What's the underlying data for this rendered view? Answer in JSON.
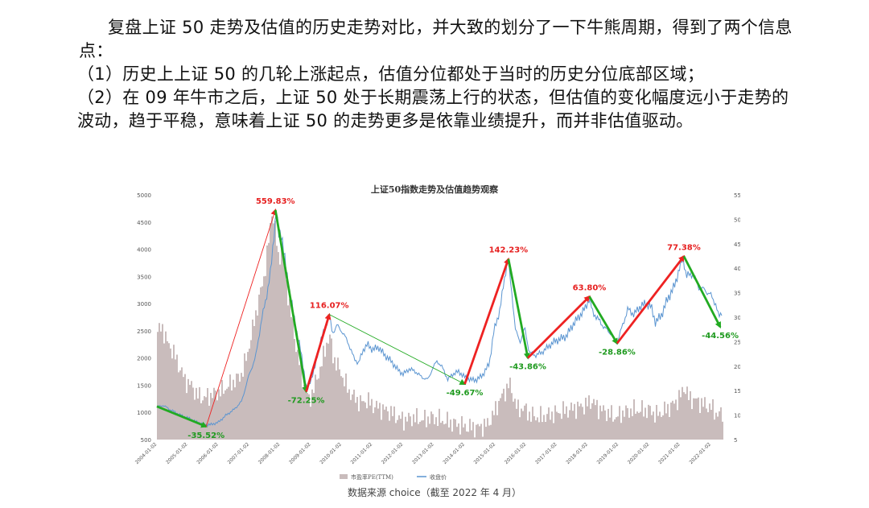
{
  "text": {
    "intro": "复盘上证 50 走势及估值的历史走势对比，并大致的划分了一下牛熊周期，得到了两个信息点：",
    "point1": "（1）历史上上证 50 的几轮上涨起点，估值分位都处于当时的历史分位底部区域；",
    "point2": "（2）在 09 年牛市之后，上证 50 处于长期震荡上行的状态，但估值的变化幅度远小于走势的波动，趋于平稳，意味着上证 50 的走势更多是依靠业绩提升，而并非估值驱动。",
    "source": "数据来源 choice（截至 2022 年 4 月）"
  },
  "chart_data": {
    "type": "area",
    "title": "上证50指数走势及估值趋势观察",
    "left_axis": {
      "ticks": [
        500,
        1000,
        1500,
        2000,
        2500,
        3000,
        3500,
        4000,
        4500,
        5000
      ],
      "ylim": [
        500,
        5000
      ]
    },
    "right_axis": {
      "ticks": [
        5,
        10,
        15,
        20,
        25,
        30,
        35,
        40,
        45,
        50,
        55
      ],
      "ylim": [
        5,
        55
      ]
    },
    "x_ticks": [
      "2004-01-02",
      "2005-01-02",
      "2006-01-02",
      "2007-01-02",
      "2008-01-02",
      "2009-01-02",
      "2010-01-02",
      "2011-01-02",
      "2012-01-02",
      "2013-01-02",
      "2014-01-02",
      "2015-01-02",
      "2016-01-02",
      "2017-01-02",
      "2018-01-02",
      "2019-01-02",
      "2020-01-02",
      "2021-01-02",
      "2022-01-02"
    ],
    "xlim": [
      2004.0,
      2022.35
    ],
    "legend": [
      "市盈率PE(TTM)",
      "收盘价"
    ],
    "legend_position": "bottom",
    "colors": {
      "pe": "#c9bcbc",
      "close": "#5b95d1",
      "up": "#ee2222",
      "down": "#22aa22",
      "label_up": "#e62020",
      "label_down": "#1f9a1f",
      "line": "#1a9a1a",
      "thin_up": "#e83030"
    },
    "series": [
      {
        "name": "收盘价",
        "axis": "left",
        "points": [
          [
            2004.0,
            1100
          ],
          [
            2004.2,
            1130
          ],
          [
            2004.4,
            1060
          ],
          [
            2004.6,
            1000
          ],
          [
            2004.8,
            940
          ],
          [
            2005.0,
            900
          ],
          [
            2005.3,
            820
          ],
          [
            2005.55,
            770
          ],
          [
            2005.8,
            780
          ],
          [
            2006.0,
            820
          ],
          [
            2006.25,
            950
          ],
          [
            2006.5,
            1050
          ],
          [
            2006.75,
            1200
          ],
          [
            2007.0,
            1700
          ],
          [
            2007.2,
            2000
          ],
          [
            2007.4,
            2700
          ],
          [
            2007.55,
            3100
          ],
          [
            2007.7,
            3600
          ],
          [
            2007.8,
            4250
          ],
          [
            2007.88,
            4750
          ],
          [
            2007.95,
            4250
          ],
          [
            2008.05,
            4300
          ],
          [
            2008.2,
            3600
          ],
          [
            2008.35,
            3100
          ],
          [
            2008.5,
            2600
          ],
          [
            2008.65,
            2200
          ],
          [
            2008.78,
            1750
          ],
          [
            2008.88,
            1390
          ],
          [
            2009.0,
            1600
          ],
          [
            2009.15,
            1850
          ],
          [
            2009.3,
            2300
          ],
          [
            2009.5,
            2600
          ],
          [
            2009.6,
            2800
          ],
          [
            2009.7,
            2450
          ],
          [
            2009.85,
            2600
          ],
          [
            2010.0,
            2500
          ],
          [
            2010.2,
            2300
          ],
          [
            2010.4,
            2000
          ],
          [
            2010.55,
            1900
          ],
          [
            2010.7,
            2150
          ],
          [
            2010.85,
            2250
          ],
          [
            2011.0,
            2150
          ],
          [
            2011.2,
            2200
          ],
          [
            2011.4,
            2050
          ],
          [
            2011.6,
            1950
          ],
          [
            2011.8,
            1800
          ],
          [
            2012.0,
            1700
          ],
          [
            2012.2,
            1800
          ],
          [
            2012.4,
            1750
          ],
          [
            2012.6,
            1650
          ],
          [
            2012.8,
            1600
          ],
          [
            2012.95,
            1800
          ],
          [
            2013.1,
            1950
          ],
          [
            2013.3,
            1800
          ],
          [
            2013.45,
            1600
          ],
          [
            2013.6,
            1700
          ],
          [
            2013.8,
            1750
          ],
          [
            2014.0,
            1650
          ],
          [
            2014.2,
            1600
          ],
          [
            2014.4,
            1600
          ],
          [
            2014.6,
            1700
          ],
          [
            2014.8,
            1900
          ],
          [
            2014.95,
            2500
          ],
          [
            2015.15,
            2900
          ],
          [
            2015.3,
            3500
          ],
          [
            2015.4,
            3820
          ],
          [
            2015.55,
            3100
          ],
          [
            2015.65,
            2500
          ],
          [
            2015.8,
            2300
          ],
          [
            2015.95,
            2550
          ],
          [
            2016.1,
            2100
          ],
          [
            2016.3,
            2050
          ],
          [
            2016.5,
            2100
          ],
          [
            2016.7,
            2200
          ],
          [
            2016.9,
            2300
          ],
          [
            2017.1,
            2350
          ],
          [
            2017.3,
            2400
          ],
          [
            2017.5,
            2600
          ],
          [
            2017.7,
            2750
          ],
          [
            2017.9,
            2900
          ],
          [
            2018.05,
            3100
          ],
          [
            2018.15,
            2850
          ],
          [
            2018.35,
            2700
          ],
          [
            2018.55,
            2550
          ],
          [
            2018.75,
            2450
          ],
          [
            2018.95,
            2280
          ],
          [
            2019.1,
            2550
          ],
          [
            2019.3,
            2900
          ],
          [
            2019.5,
            2800
          ],
          [
            2019.7,
            2950
          ],
          [
            2019.9,
            3000
          ],
          [
            2020.05,
            2950
          ],
          [
            2020.2,
            2650
          ],
          [
            2020.4,
            2800
          ],
          [
            2020.6,
            3100
          ],
          [
            2020.8,
            3300
          ],
          [
            2020.95,
            3600
          ],
          [
            2021.1,
            3850
          ],
          [
            2021.2,
            3500
          ],
          [
            2021.4,
            3550
          ],
          [
            2021.6,
            3300
          ],
          [
            2021.8,
            3250
          ],
          [
            2022.0,
            3150
          ],
          [
            2022.15,
            3000
          ],
          [
            2022.25,
            2750
          ],
          [
            2022.35,
            2850
          ]
        ]
      },
      {
        "name": "市盈率PE(TTM)",
        "axis": "right",
        "points": [
          [
            2004.0,
            27
          ],
          [
            2004.15,
            28
          ],
          [
            2004.3,
            25
          ],
          [
            2004.5,
            23
          ],
          [
            2004.7,
            20
          ],
          [
            2004.9,
            17
          ],
          [
            2005.1,
            16
          ],
          [
            2005.3,
            14
          ],
          [
            2005.5,
            13.5
          ],
          [
            2005.7,
            14
          ],
          [
            2005.9,
            14.5
          ],
          [
            2006.1,
            15
          ],
          [
            2006.3,
            16
          ],
          [
            2006.5,
            17
          ],
          [
            2006.7,
            18
          ],
          [
            2006.9,
            22
          ],
          [
            2007.1,
            28
          ],
          [
            2007.3,
            34
          ],
          [
            2007.45,
            38
          ],
          [
            2007.6,
            45
          ],
          [
            2007.72,
            52
          ],
          [
            2007.82,
            48
          ],
          [
            2007.92,
            42
          ],
          [
            2008.05,
            44
          ],
          [
            2008.2,
            36
          ],
          [
            2008.35,
            30
          ],
          [
            2008.5,
            24
          ],
          [
            2008.65,
            19
          ],
          [
            2008.8,
            15
          ],
          [
            2008.92,
            13
          ],
          [
            2009.05,
            15
          ],
          [
            2009.2,
            18
          ],
          [
            2009.35,
            21
          ],
          [
            2009.5,
            25
          ],
          [
            2009.6,
            26
          ],
          [
            2009.7,
            22
          ],
          [
            2009.85,
            20
          ],
          [
            2010.0,
            18
          ],
          [
            2010.2,
            15
          ],
          [
            2010.4,
            13.5
          ],
          [
            2010.6,
            12.5
          ],
          [
            2010.8,
            13
          ],
          [
            2011.0,
            12
          ],
          [
            2011.2,
            11.5
          ],
          [
            2011.4,
            11
          ],
          [
            2011.6,
            10.5
          ],
          [
            2011.8,
            9.5
          ],
          [
            2012.0,
            9
          ],
          [
            2012.3,
            9.5
          ],
          [
            2012.6,
            9
          ],
          [
            2012.9,
            9.5
          ],
          [
            2013.2,
            9
          ],
          [
            2013.5,
            8.5
          ],
          [
            2013.8,
            8
          ],
          [
            2014.1,
            7.5
          ],
          [
            2014.4,
            7.5
          ],
          [
            2014.7,
            8
          ],
          [
            2014.9,
            10
          ],
          [
            2015.1,
            13
          ],
          [
            2015.3,
            15
          ],
          [
            2015.42,
            16.5
          ],
          [
            2015.55,
            14
          ],
          [
            2015.7,
            11
          ],
          [
            2015.9,
            11.5
          ],
          [
            2016.1,
            10
          ],
          [
            2016.4,
            9.5
          ],
          [
            2016.7,
            10
          ],
          [
            2017.0,
            10.5
          ],
          [
            2017.3,
            11
          ],
          [
            2017.6,
            11.5
          ],
          [
            2017.9,
            12
          ],
          [
            2018.1,
            13
          ],
          [
            2018.3,
            11.5
          ],
          [
            2018.6,
            10.5
          ],
          [
            2018.9,
            9.5
          ],
          [
            2019.1,
            10.5
          ],
          [
            2019.4,
            11
          ],
          [
            2019.7,
            11
          ],
          [
            2020.0,
            11
          ],
          [
            2020.2,
            10
          ],
          [
            2020.5,
            11
          ],
          [
            2020.8,
            12.5
          ],
          [
            2021.0,
            14
          ],
          [
            2021.12,
            16
          ],
          [
            2021.25,
            13.5
          ],
          [
            2021.5,
            13
          ],
          [
            2021.8,
            12
          ],
          [
            2022.0,
            11.5
          ],
          [
            2022.2,
            10
          ],
          [
            2022.35,
            10.5
          ]
        ]
      }
    ],
    "trend_arrows": [
      {
        "from": [
          2004.0,
          1110
        ],
        "to": [
          2005.6,
          740
        ],
        "type": "down",
        "label": "-35.52%"
      },
      {
        "from": [
          2005.6,
          740
        ],
        "to": [
          2007.85,
          4720
        ],
        "type": "up",
        "label": "559.83%"
      },
      {
        "from": [
          2007.85,
          4720
        ],
        "to": [
          2008.85,
          1380
        ],
        "type": "down",
        "label": "-72.25%"
      },
      {
        "from": [
          2008.85,
          1380
        ],
        "to": [
          2009.6,
          2800
        ],
        "type": "up",
        "label": "116.07%"
      },
      {
        "from": [
          2009.6,
          2800
        ],
        "to": [
          2014.0,
          1520
        ],
        "type": "down",
        "label": "-49.67%"
      },
      {
        "from": [
          2014.0,
          1520
        ],
        "to": [
          2015.42,
          3820
        ],
        "type": "up",
        "label": "142.23%"
      },
      {
        "from": [
          2015.42,
          3820
        ],
        "to": [
          2016.05,
          2000
        ],
        "type": "down",
        "label": "-43.86%"
      },
      {
        "from": [
          2016.05,
          2000
        ],
        "to": [
          2018.05,
          3130
        ],
        "type": "up",
        "label": "63.80%"
      },
      {
        "from": [
          2018.05,
          3130
        ],
        "to": [
          2018.95,
          2270
        ],
        "type": "down",
        "label": "-28.86%"
      },
      {
        "from": [
          2018.95,
          2270
        ],
        "to": [
          2021.12,
          3870
        ],
        "type": "up",
        "label": "77.38%"
      },
      {
        "from": [
          2021.12,
          3870
        ],
        "to": [
          2022.3,
          2570
        ],
        "type": "down",
        "label": "-44.56%"
      }
    ]
  }
}
